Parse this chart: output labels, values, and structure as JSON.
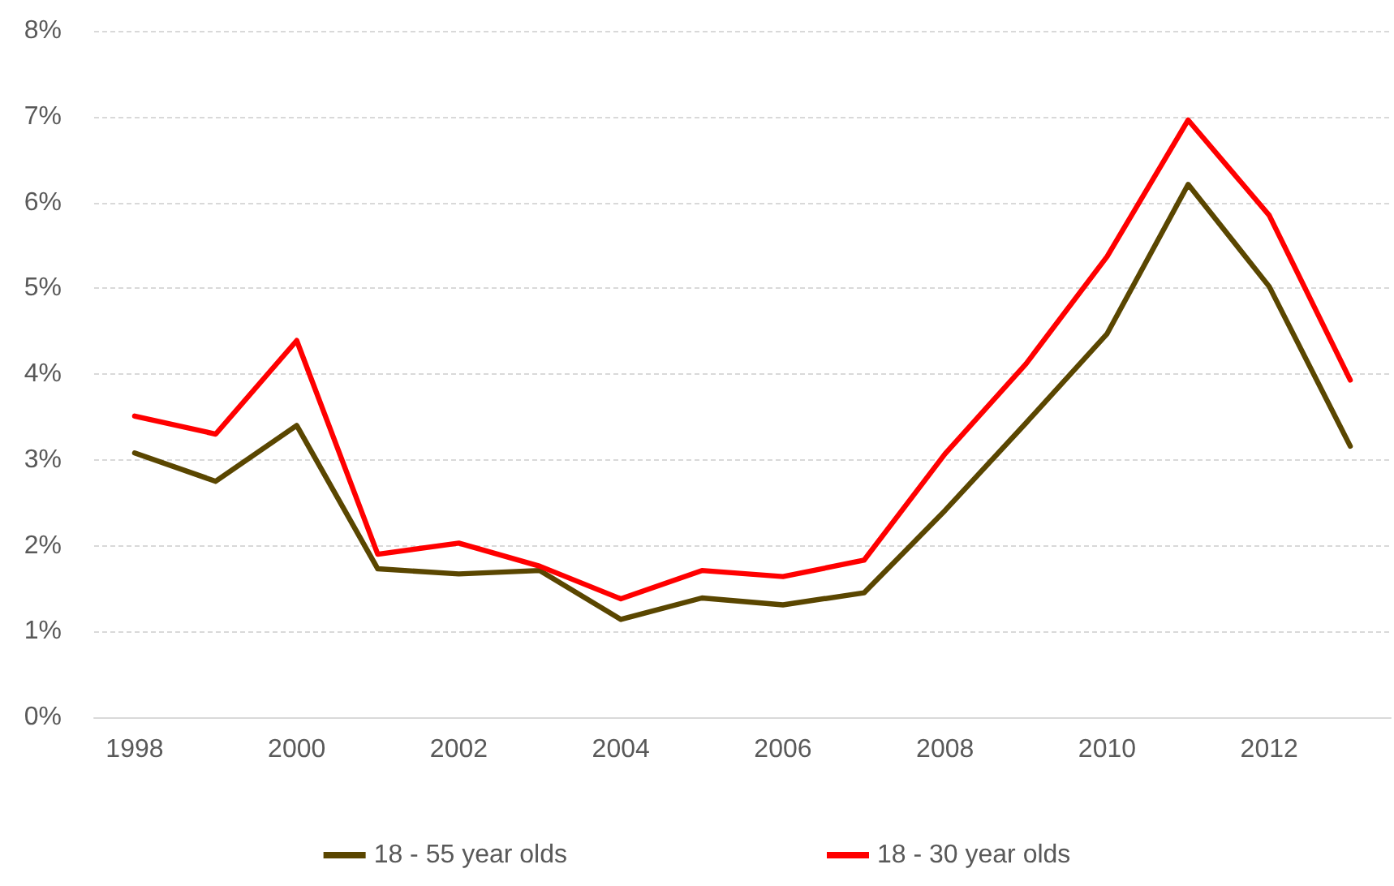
{
  "chart_data": {
    "type": "line",
    "categories": [
      "1998",
      null,
      "2000",
      null,
      "2002",
      null,
      "2004",
      null,
      "2006",
      null,
      "2008",
      null,
      "2010",
      null,
      "2012",
      null
    ],
    "series": [
      {
        "name": "18 - 55 year olds",
        "color": "#5a4600",
        "values": [
          3.08,
          2.75,
          3.4,
          1.73,
          1.67,
          1.71,
          1.14,
          1.39,
          1.31,
          1.45,
          2.41,
          3.43,
          4.47,
          6.21,
          5.02,
          3.16
        ]
      },
      {
        "name": "18 - 30 year olds",
        "color": "#ff0000",
        "values": [
          3.51,
          3.3,
          4.39,
          1.9,
          2.03,
          1.76,
          1.38,
          1.71,
          1.64,
          1.83,
          3.07,
          4.12,
          5.37,
          6.96,
          5.85,
          3.93
        ]
      }
    ],
    "ylim": [
      0,
      8
    ],
    "yticks": [
      {
        "value": 0,
        "label": "0%"
      },
      {
        "value": 1,
        "label": "1%"
      },
      {
        "value": 2,
        "label": "2%"
      },
      {
        "value": 3,
        "label": "3%"
      },
      {
        "value": 4,
        "label": "4%"
      },
      {
        "value": 5,
        "label": "5%"
      },
      {
        "value": 6,
        "label": "6%"
      },
      {
        "value": 7,
        "label": "7%"
      },
      {
        "value": 8,
        "label": "8%"
      }
    ],
    "grid": "y",
    "legend": "bottom",
    "marker": "none",
    "line_style": "solid"
  }
}
